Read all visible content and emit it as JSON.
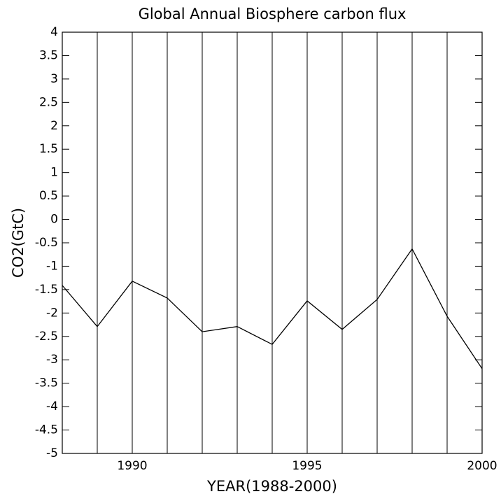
{
  "chart_data": {
    "type": "line",
    "title": "Global Annual Biosphere carbon flux",
    "x_label": "YEAR(1988-2000)",
    "y_label": "CO2(GtC)",
    "x": [
      1988,
      1989,
      1990,
      1991,
      1992,
      1993,
      1994,
      1995,
      1996,
      1997,
      1998,
      1999,
      2000
    ],
    "series": [
      {
        "color": "#000000",
        "values": [
          -1.41,
          -2.29,
          -1.32,
          -1.68,
          -2.4,
          -2.29,
          -2.67,
          -1.74,
          -2.35,
          -1.71,
          -0.63,
          -2.07,
          -3.19
        ]
      }
    ],
    "xlim": [
      1988,
      2000
    ],
    "xticks": [
      1990,
      1995,
      2000
    ],
    "x_gridlines": [
      1989,
      1990,
      1991,
      1992,
      1993,
      1994,
      1995,
      1996,
      1997,
      1998,
      1999
    ],
    "ylim": [
      -5,
      4
    ],
    "yticks": [
      -5,
      -4.5,
      -4,
      -3.5,
      -3,
      -2.5,
      -2,
      -1.5,
      -1,
      -0.5,
      0,
      0.5,
      1,
      1.5,
      2,
      2.5,
      3,
      3.5,
      4
    ],
    "grid": true
  }
}
